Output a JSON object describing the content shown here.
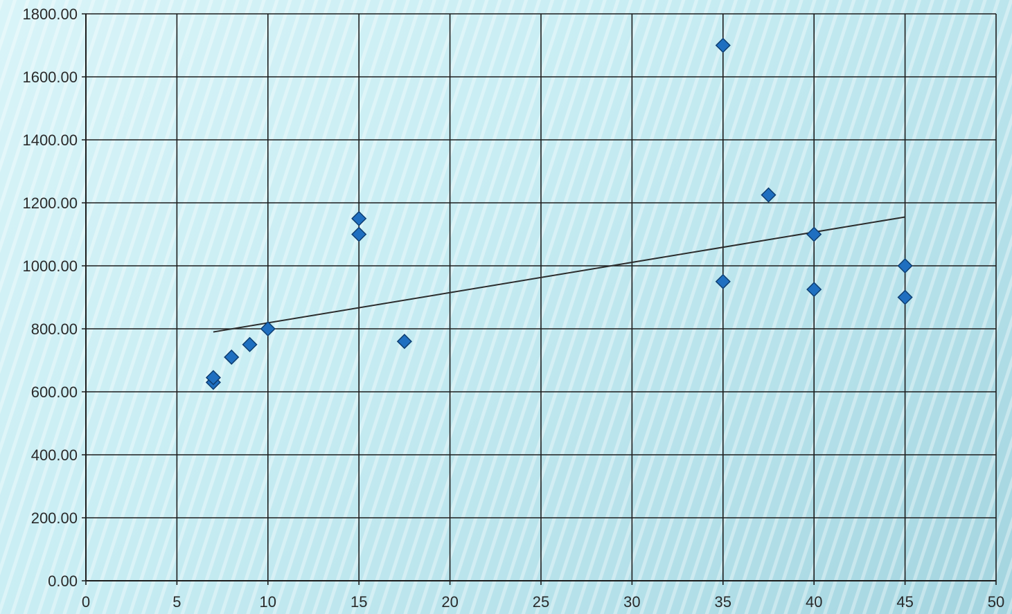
{
  "chart_data": {
    "type": "scatter",
    "title": "",
    "xlabel": "",
    "ylabel": "",
    "xlim": [
      0,
      50
    ],
    "ylim": [
      0,
      1800
    ],
    "x_ticks": [
      "0",
      "5",
      "10",
      "15",
      "20",
      "25",
      "30",
      "35",
      "40",
      "45",
      "50"
    ],
    "y_ticks": [
      "0.00",
      "200.00",
      "400.00",
      "600.00",
      "800.00",
      "1000.00",
      "1200.00",
      "1400.00",
      "1600.00",
      "1800.00"
    ],
    "grid": true,
    "legend": "none",
    "marker": "diamond",
    "series": [
      {
        "points": [
          {
            "x": 7,
            "y": 630
          },
          {
            "x": 7,
            "y": 645
          },
          {
            "x": 8,
            "y": 710
          },
          {
            "x": 9,
            "y": 750
          },
          {
            "x": 10,
            "y": 800
          },
          {
            "x": 15,
            "y": 1100
          },
          {
            "x": 15,
            "y": 1150
          },
          {
            "x": 17.5,
            "y": 760
          },
          {
            "x": 35,
            "y": 1700
          },
          {
            "x": 35,
            "y": 950
          },
          {
            "x": 37.5,
            "y": 1225
          },
          {
            "x": 40,
            "y": 1100
          },
          {
            "x": 40,
            "y": 925
          },
          {
            "x": 45,
            "y": 1000
          },
          {
            "x": 45,
            "y": 900
          }
        ]
      }
    ],
    "trendline": {
      "type": "linear",
      "x_start": 7,
      "y_start": 790,
      "x_end": 45,
      "y_end": 1155
    },
    "colors": {
      "marker_fill": "#1f6fc0",
      "marker_stroke": "#0d3d70",
      "grid": "#1c1c1c"
    }
  }
}
